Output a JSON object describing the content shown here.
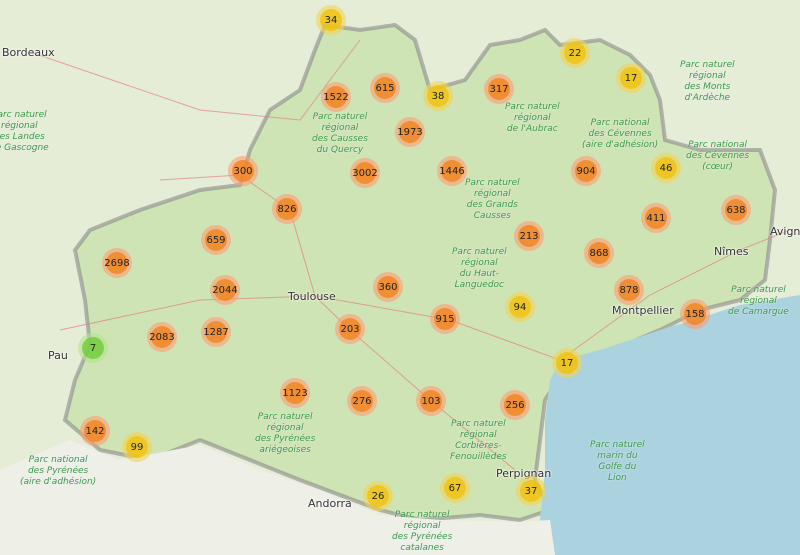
{
  "map": {
    "cities": [
      "Bordeaux",
      "Toulouse",
      "Pau",
      "Andorra",
      "Perpignan",
      "Nîmes",
      "Montpellier",
      "Avignon"
    ],
    "parks": [
      "Parc naturel\nrégional\ndes Landes\nde Gascogne",
      "Parc naturel\nrégional\ndes Causses\ndu Quercy",
      "Parc naturel\nrégional\nde l'Aubrac",
      "Parc naturel\nrégional\ndes Monts\nd'Ardèche",
      "Parc national\ndes Cévennes\n(aire d'adhésion)",
      "Parc national\ndes Cévennes\n(cœur)",
      "Parc naturel\nrégional\ndes Grands\nCausses",
      "Parc naturel\nrégional\ndu Haut-\nLanguedoc",
      "Parc naturel\nrégional\nde Camargue",
      "Parc naturel\nrégional\ndes Pyrénées\nariégeoises",
      "Parc naturel\nrégional\nCorbières-\nFenouillèdes",
      "Parc naturel\nmarin du\nGolfe du\nLion",
      "Parc naturel\nrégional\ndes Pyrénées\ncatalanes",
      "Parc national\ndes Pyrénées\n(aire d'adhésion)"
    ],
    "cluster_colors": {
      "orange": "#f18017",
      "yellow": "#f0c20c",
      "green": "#6ecc39"
    },
    "clusters": [
      {
        "count": "34",
        "level": "yellow"
      },
      {
        "count": "1522",
        "level": "orange"
      },
      {
        "count": "615",
        "level": "orange"
      },
      {
        "count": "38",
        "level": "yellow"
      },
      {
        "count": "317",
        "level": "orange"
      },
      {
        "count": "22",
        "level": "yellow"
      },
      {
        "count": "17",
        "level": "yellow"
      },
      {
        "count": "1973",
        "level": "orange"
      },
      {
        "count": "300",
        "level": "orange"
      },
      {
        "count": "3002",
        "level": "orange"
      },
      {
        "count": "1446",
        "level": "orange"
      },
      {
        "count": "904",
        "level": "orange"
      },
      {
        "count": "46",
        "level": "yellow"
      },
      {
        "count": "826",
        "level": "orange"
      },
      {
        "count": "411",
        "level": "orange"
      },
      {
        "count": "638",
        "level": "orange"
      },
      {
        "count": "659",
        "level": "orange"
      },
      {
        "count": "213",
        "level": "orange"
      },
      {
        "count": "2698",
        "level": "orange"
      },
      {
        "count": "868",
        "level": "orange"
      },
      {
        "count": "2044",
        "level": "orange"
      },
      {
        "count": "360",
        "level": "orange"
      },
      {
        "count": "878",
        "level": "orange"
      },
      {
        "count": "94",
        "level": "yellow"
      },
      {
        "count": "915",
        "level": "orange"
      },
      {
        "count": "158",
        "level": "orange"
      },
      {
        "count": "2083",
        "level": "orange"
      },
      {
        "count": "1287",
        "level": "orange"
      },
      {
        "count": "203",
        "level": "orange"
      },
      {
        "count": "7",
        "level": "green"
      },
      {
        "count": "17",
        "level": "yellow"
      },
      {
        "count": "1123",
        "level": "orange"
      },
      {
        "count": "276",
        "level": "orange"
      },
      {
        "count": "103",
        "level": "orange"
      },
      {
        "count": "256",
        "level": "orange"
      },
      {
        "count": "142",
        "level": "orange"
      },
      {
        "count": "99",
        "level": "yellow"
      },
      {
        "count": "67",
        "level": "yellow"
      },
      {
        "count": "26",
        "level": "yellow"
      },
      {
        "count": "37",
        "level": "yellow"
      }
    ]
  }
}
